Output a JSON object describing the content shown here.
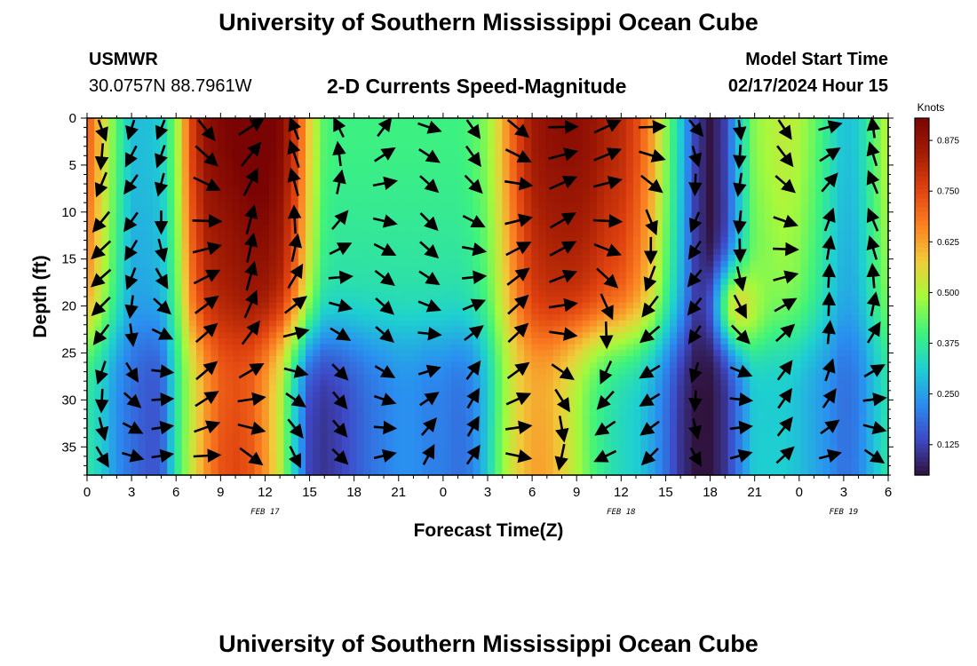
{
  "header": {
    "title": "University of Southern Mississippi Ocean Cube",
    "station": "USMWR",
    "location": "30.0757N  88.7961W",
    "subtitle": "2-D Currents Speed-Magnitude",
    "model_label": "Model Start Time",
    "model_time": "02/17/2024 Hour 15",
    "footer_title": "University of Southern Mississippi Ocean Cube"
  },
  "chart_data": {
    "type": "heatmap",
    "xlabel": "Forecast Time(Z)",
    "ylabel": "Depth (ft)",
    "x_range_hours": [
      0,
      54
    ],
    "x_tick_labels": [
      "0",
      "3",
      "6",
      "9",
      "12",
      "15",
      "18",
      "21",
      "0",
      "3",
      "6",
      "9",
      "12",
      "15",
      "18",
      "21",
      "0",
      "3",
      "6"
    ],
    "date_labels": [
      {
        "label": "FEB 17",
        "hour": 12
      },
      {
        "label": "FEB 18",
        "hour": 36
      },
      {
        "label": "FEB 19",
        "hour": 51
      }
    ],
    "y_range_ft": [
      0,
      38
    ],
    "y_tick_labels": [
      "0",
      "5",
      "10",
      "15",
      "20",
      "25",
      "30",
      "35"
    ],
    "colorbar": {
      "title": "Knots",
      "min": 0.05,
      "max": 0.93,
      "ticks": [
        "0.125",
        "0.250",
        "0.375",
        "0.500",
        "0.625",
        "0.750",
        "0.875"
      ],
      "colors": [
        "#30123b",
        "#3e49c7",
        "#2a8ef0",
        "#1ed0d0",
        "#3ff37b",
        "#a7f93c",
        "#f0cc3a",
        "#fb8022",
        "#e0420f",
        "#a51d04",
        "#7a0403"
      ]
    },
    "speed_profile": {
      "hours": [
        0,
        1,
        2,
        3,
        4,
        5,
        6,
        7,
        8,
        9,
        10,
        11,
        12,
        13,
        14,
        15,
        16,
        17,
        18,
        19,
        20,
        21,
        22,
        23,
        24,
        25,
        26,
        27,
        28,
        29,
        30,
        31,
        32,
        33,
        34,
        35,
        36,
        37,
        38,
        39,
        40,
        41,
        42,
        43,
        44,
        45,
        46,
        47,
        48,
        49,
        50,
        51,
        52,
        53,
        54
      ],
      "surface": [
        0.7,
        0.55,
        0.4,
        0.28,
        0.28,
        0.3,
        0.45,
        0.72,
        0.85,
        0.88,
        0.9,
        0.92,
        0.92,
        0.88,
        0.75,
        0.55,
        0.4,
        0.38,
        0.38,
        0.38,
        0.38,
        0.38,
        0.38,
        0.38,
        0.38,
        0.38,
        0.4,
        0.45,
        0.58,
        0.72,
        0.82,
        0.85,
        0.86,
        0.86,
        0.84,
        0.8,
        0.78,
        0.72,
        0.62,
        0.45,
        0.3,
        0.12,
        0.05,
        0.12,
        0.3,
        0.45,
        0.48,
        0.5,
        0.48,
        0.42,
        0.35,
        0.28,
        0.3,
        0.4,
        0.5
      ],
      "bottom": [
        0.35,
        0.3,
        0.22,
        0.18,
        0.15,
        0.15,
        0.35,
        0.5,
        0.62,
        0.7,
        0.72,
        0.7,
        0.62,
        0.5,
        0.3,
        0.12,
        0.1,
        0.12,
        0.15,
        0.18,
        0.2,
        0.22,
        0.22,
        0.2,
        0.2,
        0.18,
        0.2,
        0.3,
        0.45,
        0.55,
        0.6,
        0.6,
        0.55,
        0.48,
        0.4,
        0.35,
        0.32,
        0.3,
        0.25,
        0.18,
        0.1,
        0.05,
        0.05,
        0.1,
        0.2,
        0.3,
        0.3,
        0.3,
        0.28,
        0.25,
        0.22,
        0.18,
        0.2,
        0.28,
        0.35
      ],
      "transition_depth_ft": 23
    },
    "warm_pocket": {
      "hour": 44,
      "depth_ft": 20,
      "speed": 0.55
    },
    "vector_columns_hours": [
      1,
      3,
      5,
      8,
      11,
      14,
      17,
      20,
      23,
      26,
      29,
      32,
      35,
      38,
      41,
      44,
      47,
      50,
      53
    ],
    "vector_rows_ft": [
      0,
      3,
      6,
      10,
      13,
      16,
      19,
      22,
      26,
      29,
      32,
      35
    ]
  }
}
